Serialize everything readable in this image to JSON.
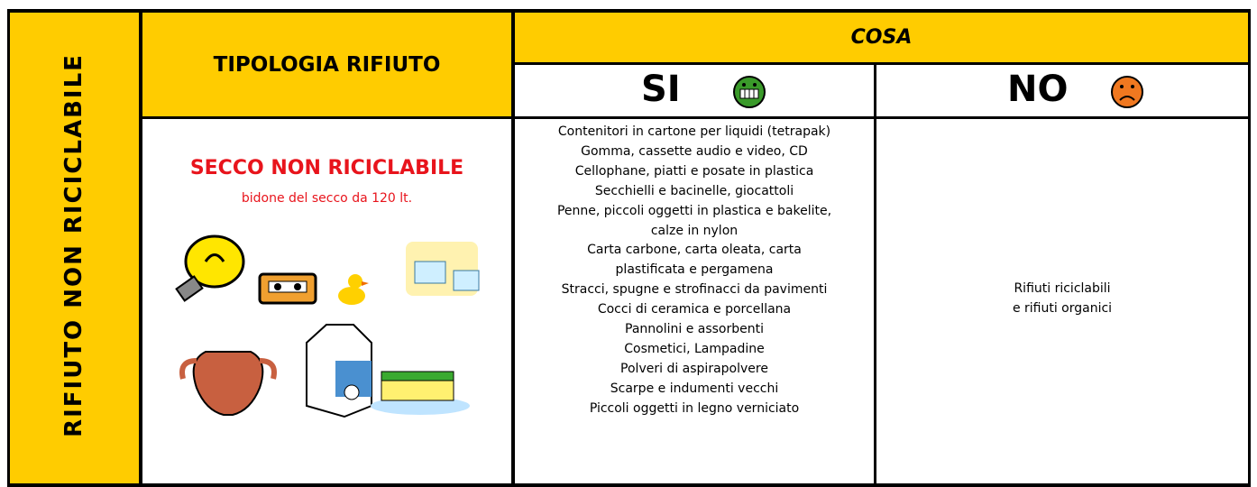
{
  "header": {
    "side_label": "RIFIUTO NON RICICLABILE",
    "tipologia": "TIPOLOGIA RIFIUTO",
    "cosa": "COSA",
    "si": "SI",
    "no": "NO"
  },
  "waste": {
    "title": "SECCO NON RICICLABILE",
    "subtitle": "bidone del secco da 120 lt."
  },
  "si_lines": [
    "Contenitori in cartone per liquidi (tetrapak)",
    "Gomma, cassette audio e video, CD",
    "Cellophane, piatti e posate in plastica",
    "Secchielli e bacinelle, giocattoli",
    "Penne, piccoli oggetti in plastica e bakelite,",
    "calze in nylon",
    "Carta carbone, carta oleata, carta",
    "plastificata e pergamena",
    "Stracci, spugne e strofinacci da pavimenti",
    "Cocci di ceramica e porcellana",
    "Pannolini e assorbenti",
    "Cosmetici, Lampadine",
    "Polveri di aspirapolvere",
    "Scarpe e indumenti vecchi",
    "Piccoli oggetti in legno verniciato"
  ],
  "no_lines": [
    "Rifiuti riciclabili",
    "e rifiuti organici"
  ]
}
